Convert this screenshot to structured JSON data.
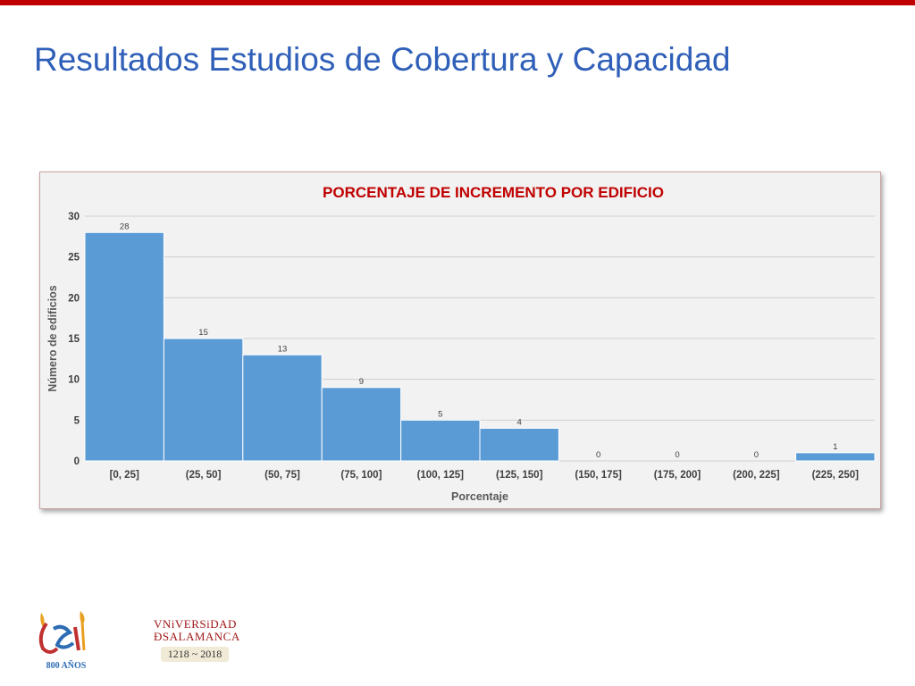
{
  "slide": {
    "title": "Resultados Estudios de Cobertura y Capacidad",
    "accent_color": "#c00000",
    "title_color": "#2f5fb8"
  },
  "chart_data": {
    "type": "bar",
    "title": "PORCENTAJE DE INCREMENTO POR EDIFICIO",
    "xlabel": "Porcentaje",
    "ylabel": "Número de edificios",
    "categories": [
      "[0, 25]",
      "(25, 50]",
      "(50, 75]",
      "(75, 100]",
      "(100, 125]",
      "(125, 150]",
      "(150, 175]",
      "(175, 200]",
      "(200, 225]",
      "(225, 250]"
    ],
    "values": [
      28,
      15,
      13,
      9,
      5,
      4,
      0,
      0,
      0,
      1
    ],
    "ylim": [
      0,
      30
    ],
    "yticks": [
      0,
      5,
      10,
      15,
      20,
      25,
      30
    ],
    "grid": true,
    "bar_color": "#5b9bd5",
    "title_color": "#c00000"
  },
  "logos": {
    "anniversary": {
      "icon": "usal-800-anos-logo",
      "text_main": "Usal",
      "text_sub": "800 AÑOS"
    },
    "university": {
      "icon": "universidad-de-salamanca-logo",
      "line1": "VNiVERSiDAD",
      "line2": "ÐSALAMANCA",
      "years": "1218 ~ 2018"
    }
  }
}
